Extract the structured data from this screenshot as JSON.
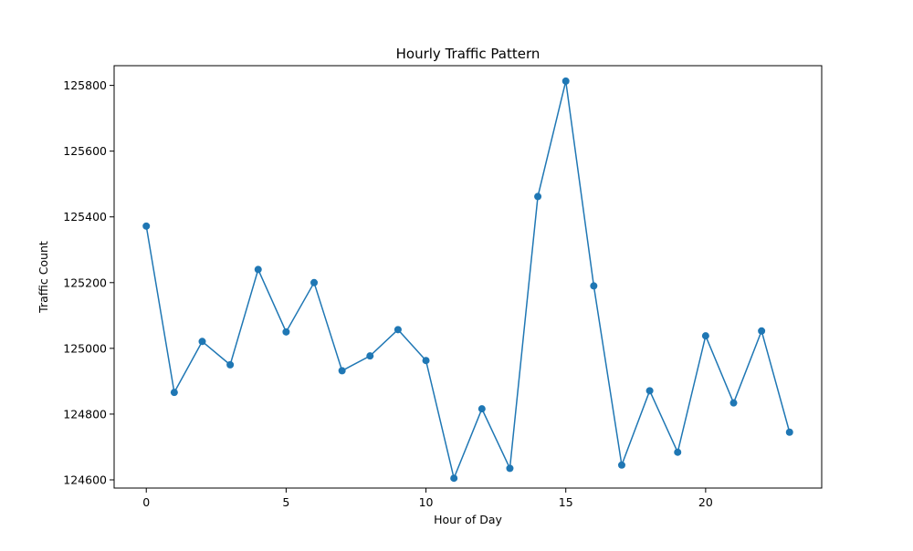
{
  "chart_data": {
    "type": "line",
    "title": "Hourly Traffic Pattern",
    "xlabel": "Hour of Day",
    "ylabel": "Traffic Count",
    "x": [
      0,
      1,
      2,
      3,
      4,
      5,
      6,
      7,
      8,
      9,
      10,
      11,
      12,
      13,
      14,
      15,
      16,
      17,
      18,
      19,
      20,
      21,
      22,
      23
    ],
    "series": [
      {
        "values": [
          125372,
          124866,
          125021,
          124950,
          125240,
          125050,
          125200,
          124932,
          124977,
          125057,
          124963,
          124605,
          124816,
          124635,
          125462,
          125813,
          125190,
          124645,
          124871,
          124684,
          125038,
          124834,
          125053,
          124745
        ],
        "color": "#1f77b4",
        "marker": "circle"
      }
    ],
    "xlim": [
      -1.15,
      24.15
    ],
    "ylim": [
      124575,
      125860
    ],
    "xticks": [
      0,
      5,
      10,
      15,
      20
    ],
    "xtick_labels": [
      "0",
      "5",
      "10",
      "15",
      "20"
    ],
    "yticks": [
      124600,
      124800,
      125000,
      125200,
      125400,
      125600,
      125800
    ],
    "ytick_labels": [
      "124600",
      "124800",
      "125000",
      "125200",
      "125400",
      "125600",
      "125800"
    ],
    "grid": false,
    "legend": false
  }
}
